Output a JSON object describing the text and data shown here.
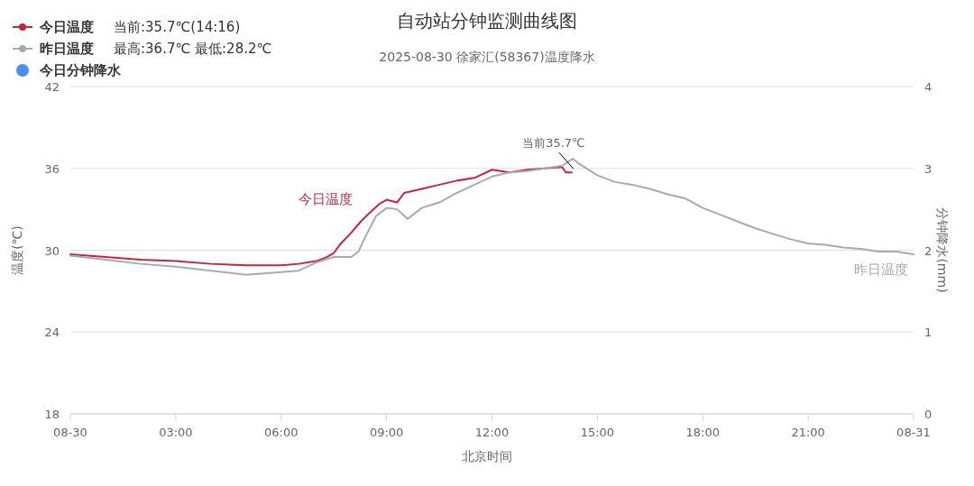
{
  "chart_data": {
    "type": "line",
    "title": "自动站分钟监测曲线图",
    "subtitle": "2025-08-30 徐家汇(58367)温度降水",
    "xlabel": "北京时间",
    "ylabel": "温度(℃)",
    "y2label": "分钟降水(mm)",
    "xlim": [
      0,
      24
    ],
    "xticks": [
      {
        "value": 0,
        "label": "08-30"
      },
      {
        "value": 3,
        "label": "03:00"
      },
      {
        "value": 6,
        "label": "06:00"
      },
      {
        "value": 9,
        "label": "09:00"
      },
      {
        "value": 12,
        "label": "12:00"
      },
      {
        "value": 15,
        "label": "15:00"
      },
      {
        "value": 18,
        "label": "18:00"
      },
      {
        "value": 21,
        "label": "21:00"
      },
      {
        "value": 24,
        "label": "08-31"
      }
    ],
    "ylim": [
      18,
      42
    ],
    "yticks": [
      18,
      24,
      30,
      36,
      42
    ],
    "y2lim": [
      0,
      4
    ],
    "y2ticks": [
      0,
      1,
      2,
      3,
      4
    ],
    "grid": "y",
    "legend": "top left",
    "annotations": [
      {
        "text": "当前35.7℃",
        "x": 14.27,
        "y": 35.7
      },
      "当前:35.7℃(14:16)",
      "最高:36.7℃ 最低:28.2℃"
    ],
    "series": [
      {
        "name": "今日温度",
        "color": "#c0283f",
        "x": [
          0,
          1,
          2,
          3,
          4,
          5,
          6,
          6.5,
          7,
          7.3,
          7.5,
          7.7,
          8,
          8.3,
          8.5,
          8.8,
          9,
          9.3,
          9.5,
          10,
          10.5,
          11,
          11.5,
          12,
          12.5,
          13,
          13.5,
          14,
          14.1,
          14.27
        ],
        "values": [
          29.7,
          29.5,
          29.3,
          29.2,
          29.0,
          28.9,
          28.9,
          29.0,
          29.2,
          29.5,
          29.8,
          30.5,
          31.3,
          32.2,
          32.7,
          33.4,
          33.7,
          33.5,
          34.2,
          34.5,
          34.8,
          35.1,
          35.3,
          35.9,
          35.7,
          35.9,
          36.0,
          36.1,
          35.7,
          35.7
        ]
      },
      {
        "name": "昨日温度",
        "color": "#aaaaaa",
        "x": [
          0,
          1,
          2,
          3,
          4,
          5,
          6,
          6.5,
          7,
          7.5,
          8,
          8.2,
          8.4,
          8.7,
          9,
          9.3,
          9.6,
          10,
          10.5,
          11,
          11.5,
          12,
          12.5,
          13,
          13.5,
          14,
          14.3,
          14.5,
          15,
          15.5,
          16,
          16.5,
          17,
          17.5,
          18,
          18.5,
          19,
          19.5,
          20,
          20.5,
          21,
          21.5,
          22,
          22.5,
          23,
          23.5,
          24
        ],
        "values": [
          29.6,
          29.3,
          29.0,
          28.8,
          28.5,
          28.2,
          28.4,
          28.5,
          29.1,
          29.5,
          29.5,
          29.9,
          31.0,
          32.5,
          33.1,
          33.0,
          32.3,
          33.1,
          33.5,
          34.2,
          34.8,
          35.4,
          35.7,
          35.8,
          36.0,
          36.2,
          36.7,
          36.3,
          35.5,
          35.0,
          34.8,
          34.5,
          34.1,
          33.8,
          33.1,
          32.6,
          32.1,
          31.6,
          31.2,
          30.8,
          30.5,
          30.4,
          30.2,
          30.1,
          29.9,
          29.9,
          29.7
        ]
      },
      {
        "name": "今日分钟降水",
        "color": "#4a8fef",
        "type": "scatter"
      }
    ]
  }
}
